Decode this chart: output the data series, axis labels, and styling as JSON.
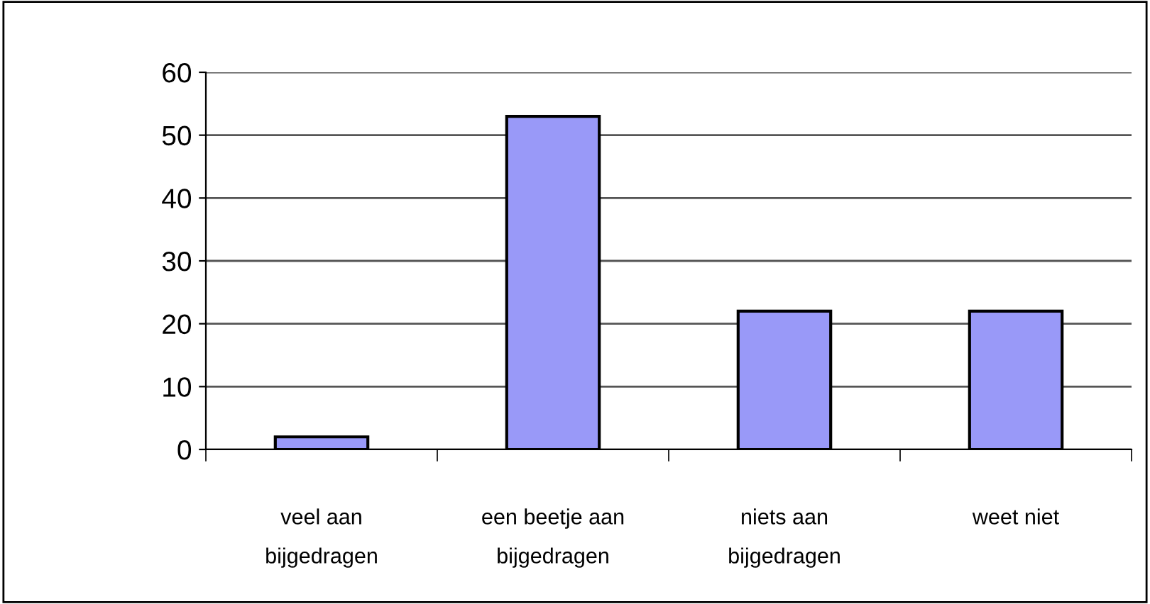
{
  "chart_data": {
    "type": "bar",
    "categories": [
      "veel aan\nbijgedragen",
      "een beetje aan\nbijgedragen",
      "niets aan\nbijgedragen",
      "weet niet"
    ],
    "values": [
      2,
      53,
      22,
      22
    ],
    "color": "#9999f8",
    "ylim": [
      0,
      60
    ],
    "yticks": [
      0,
      10,
      20,
      30,
      40,
      50,
      60
    ],
    "grid": "y",
    "legend": false
  }
}
